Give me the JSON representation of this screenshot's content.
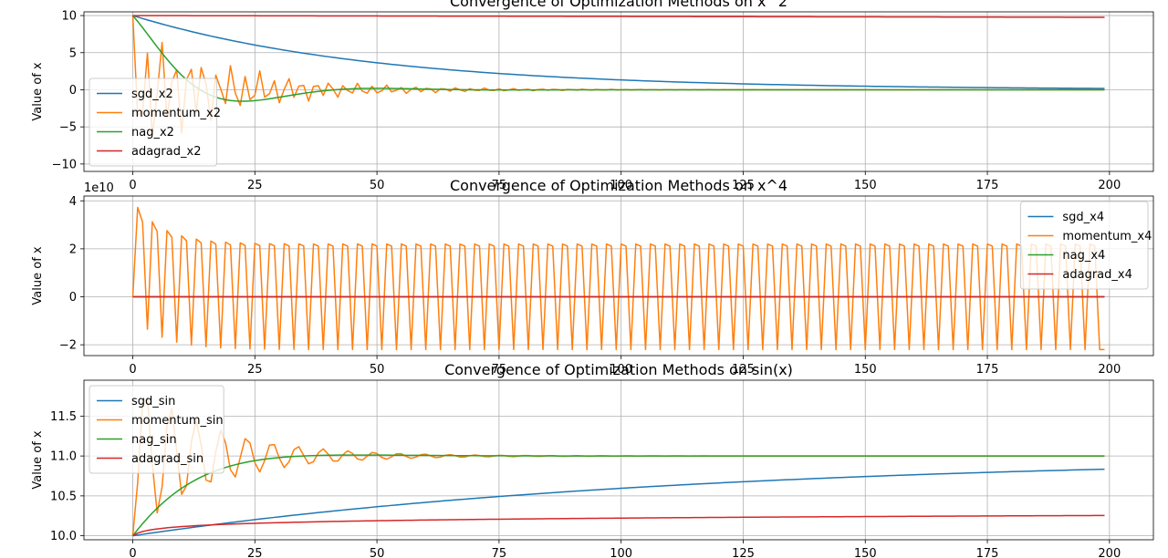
{
  "colors": {
    "blue": "#1f77b4",
    "orange": "#ff7f0e",
    "green": "#2ca02c",
    "red": "#d62728",
    "grid": "#b0b0b0"
  },
  "chart_data": [
    {
      "type": "line",
      "title": "Convergence of Optimization Methods on x^2",
      "xlabel": "",
      "ylabel": "Value of x",
      "xlim": [
        -10,
        209
      ],
      "ylim": [
        -11,
        10.5
      ],
      "xticks": [
        0,
        25,
        50,
        75,
        100,
        125,
        150,
        175,
        200
      ],
      "yticks": [
        -10,
        -5,
        0,
        5,
        10
      ],
      "ytick_labels": [
        "−10",
        "−5",
        "0",
        "5",
        "10"
      ],
      "offset_text": "",
      "grid": true,
      "legend": "bottom-left",
      "series": [
        {
          "name": "sgd_x2",
          "color": "#1f77b4",
          "model": "exp",
          "params": {
            "x0": 10,
            "r": 0.98,
            "c": 0
          }
        },
        {
          "name": "momentum_x2",
          "color": "#ff7f0e",
          "model": "osc2",
          "params": {
            "x0": 10,
            "r": 0.949,
            "w": 2.18
          }
        },
        {
          "name": "nag_x2",
          "color": "#2ca02c",
          "model": "damped",
          "params": {
            "x0": 10,
            "tau": 13.3,
            "omega": 0.0691
          }
        },
        {
          "name": "adagrad_x2",
          "color": "#d62728",
          "model": "linear",
          "params": {
            "a": 10,
            "b": -0.0012
          }
        }
      ]
    },
    {
      "type": "line",
      "title": "Convergence of Optimization Methods on x^4",
      "xlabel": "",
      "ylabel": "Value of x",
      "xlim": [
        -10,
        209
      ],
      "ylim": [
        -2.45,
        4.2
      ],
      "xticks": [
        0,
        25,
        50,
        75,
        100,
        125,
        150,
        175,
        200
      ],
      "yticks": [
        -2,
        0,
        2,
        4
      ],
      "ytick_labels": [
        "−2",
        "0",
        "2",
        "4"
      ],
      "offset_text": "1e10",
      "grid": true,
      "legend": "top-right",
      "series": [
        {
          "name": "sgd_x4",
          "color": "#1f77b4",
          "model": "zero",
          "params": {}
        },
        {
          "name": "momentum_x4",
          "color": "#ff7f0e",
          "model": "cycle3",
          "params": {
            "hi": 2.2,
            "lo": -2.2,
            "peak": 4.0,
            "decay": 0.5
          }
        },
        {
          "name": "nag_x4",
          "color": "#2ca02c",
          "model": "zero",
          "params": {}
        },
        {
          "name": "adagrad_x4",
          "color": "#d62728",
          "model": "zero",
          "params": {}
        }
      ]
    },
    {
      "type": "line",
      "title": "Convergence of Optimization Methods on sin(x)",
      "xlabel": "",
      "ylabel": "Value of x",
      "xlim": [
        -10,
        209
      ],
      "ylim": [
        9.95,
        11.95
      ],
      "xticks": [
        0,
        25,
        50,
        75,
        100,
        125,
        150,
        175,
        200
      ],
      "yticks": [
        10.0,
        10.5,
        11.0,
        11.5
      ],
      "ytick_labels": [
        "10.0",
        "10.5",
        "11.0",
        "11.5"
      ],
      "offset_text": "",
      "grid": true,
      "legend": "top-left",
      "series": [
        {
          "name": "sgd_sin",
          "color": "#1f77b4",
          "model": "approach",
          "params": {
            "x0": 10.0,
            "target": 11.0,
            "r": 0.991
          }
        },
        {
          "name": "momentum_sin",
          "color": "#ff7f0e",
          "model": "osc2up",
          "params": {
            "x0": 10.0,
            "target": 11.0,
            "r": 0.94,
            "w": 2.2
          }
        },
        {
          "name": "nag_sin",
          "color": "#2ca02c",
          "model": "smooth",
          "params": {
            "x0": 10.0,
            "target": 11.0,
            "tau": 12.5,
            "omega": 0.045
          }
        },
        {
          "name": "adagrad_sin",
          "color": "#d62728",
          "model": "log",
          "params": {
            "a": 10.0,
            "b": 0.048
          }
        }
      ]
    }
  ]
}
